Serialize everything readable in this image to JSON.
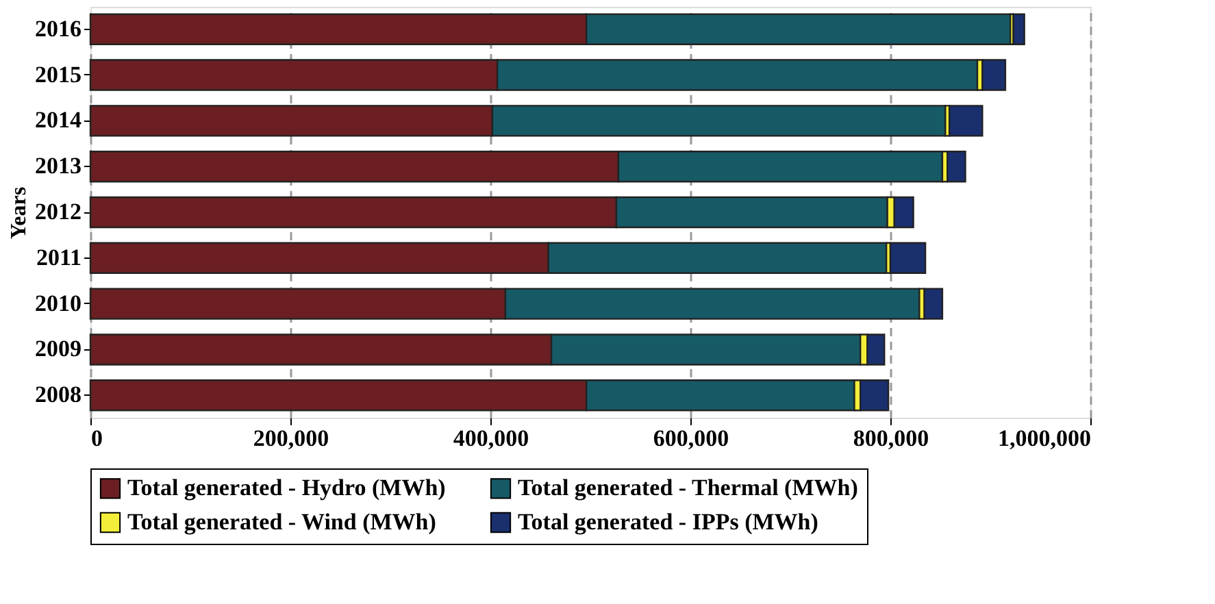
{
  "chart_data": {
    "type": "bar",
    "orientation": "horizontal",
    "stacked": true,
    "ylabel": "Years",
    "categories": [
      "2016",
      "2015",
      "2014",
      "2013",
      "2012",
      "2011",
      "2010",
      "2009",
      "2008"
    ],
    "series": [
      {
        "name": "Total generated - Hydro (MWh)",
        "color": "#6b1f22",
        "values": [
          496000,
          407000,
          402000,
          528000,
          526000,
          458000,
          415000,
          461000,
          496000
        ]
      },
      {
        "name": "Total generated - Thermal (MWh)",
        "color": "#165a66",
        "values": [
          424000,
          480000,
          453000,
          324000,
          271000,
          338000,
          414000,
          309000,
          268000
        ]
      },
      {
        "name": "Total generated - Wind (MWh)",
        "color": "#f2ee3a",
        "values": [
          3000,
          5000,
          4000,
          5000,
          7000,
          4000,
          5000,
          7000,
          6000
        ]
      },
      {
        "name": "Total generated - IPPs (MWh)",
        "color": "#1a2f6e",
        "values": [
          11000,
          23000,
          33000,
          18000,
          19000,
          35000,
          18000,
          17000,
          28000
        ]
      }
    ],
    "xlim": [
      0,
      1000000
    ],
    "xticks": [
      0,
      {
        "value": 200000,
        "label": "200,000"
      },
      {
        "value": 400000,
        "label": "400,000"
      },
      {
        "value": 600000,
        "label": "600,000"
      },
      {
        "value": 800000,
        "label": "800,000"
      },
      {
        "value": 1000000,
        "label": "1,000,000"
      }
    ],
    "grid": "x",
    "legend": "bottom"
  }
}
